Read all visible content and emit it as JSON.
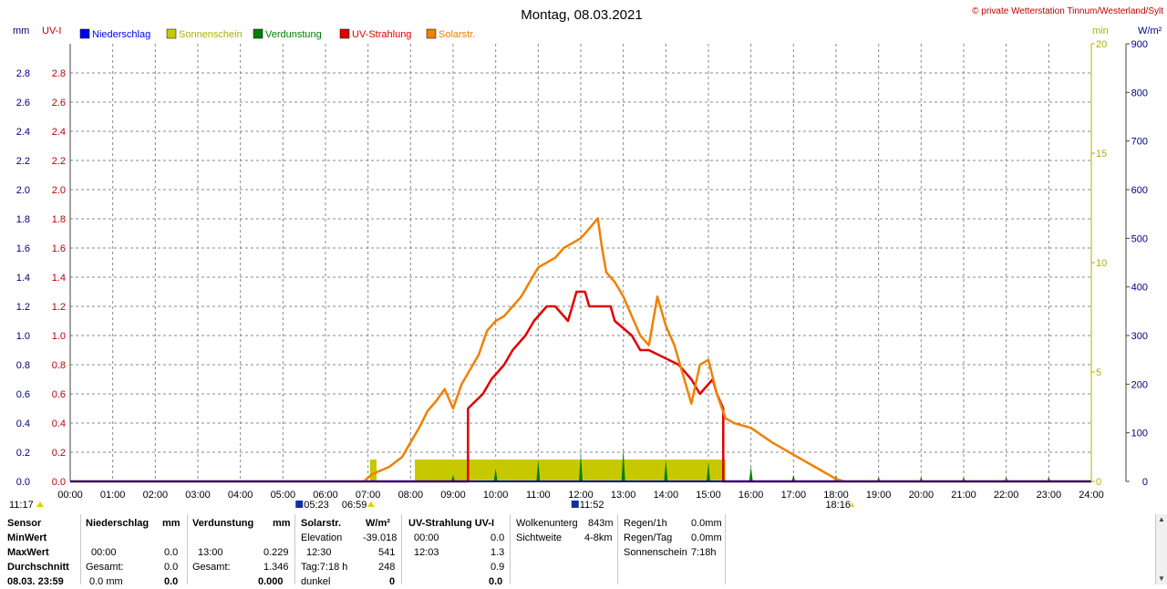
{
  "header": {
    "title": "Montag, 08.03.2021",
    "copyright": "© private Wetterstation Tinnum/Westerland/Sylt"
  },
  "axes": {
    "left1_unit": "mm",
    "left2_unit": "UV-I",
    "right1_unit": "min",
    "right2_unit": "W/m²"
  },
  "legend": [
    {
      "label": "Niederschlag",
      "color": "#0000ee"
    },
    {
      "label": "Sonnenschein",
      "color": "#c8c800"
    },
    {
      "label": "Verdunstung",
      "color": "#008000"
    },
    {
      "label": "UV-Strahlung",
      "color": "#e00000"
    },
    {
      "label": "Solarstr.",
      "color": "#f08000"
    }
  ],
  "markers": {
    "left_time": "11:17",
    "sunrise": "05:23",
    "sunrise2": "06:59",
    "noon": "11:52",
    "sunset": "18:16"
  },
  "chart_data": {
    "type": "line",
    "title": "Montag, 08.03.2021",
    "x_ticks": [
      "00:00",
      "01:00",
      "02:00",
      "03:00",
      "04:00",
      "05:00",
      "06:00",
      "07:00",
      "08:00",
      "09:00",
      "10:00",
      "11:00",
      "12:00",
      "13:00",
      "14:00",
      "15:00",
      "16:00",
      "17:00",
      "18:00",
      "19:00",
      "20:00",
      "21:00",
      "22:00",
      "23:00",
      "24:00"
    ],
    "xlim": [
      0,
      24
    ],
    "y_left_mm_ticks": [
      "0.0",
      "0.2",
      "0.4",
      "0.6",
      "0.8",
      "1.0",
      "1.2",
      "1.4",
      "1.6",
      "1.8",
      "2.0",
      "2.2",
      "2.4",
      "2.6",
      "2.8"
    ],
    "y_left_uv_ticks": [
      "0.0",
      "0.2",
      "0.4",
      "0.6",
      "0.8",
      "1.0",
      "1.2",
      "1.4",
      "1.6",
      "1.8",
      "2.0",
      "2.2",
      "2.4",
      "2.6",
      "2.8"
    ],
    "y_right_min_ticks": [
      "0",
      "5",
      "10",
      "15",
      "20"
    ],
    "y_right_wm2_ticks": [
      "0",
      "100",
      "200",
      "300",
      "400",
      "500",
      "600",
      "700",
      "800",
      "900"
    ],
    "ylim_uv": [
      0,
      3
    ],
    "ylim_min": [
      0,
      20
    ],
    "ylim_wm2": [
      0,
      900
    ],
    "grid": true,
    "series": [
      {
        "name": "UV-Strahlung",
        "axis": "uv",
        "color": "#e00000",
        "step": true,
        "x": [
          0,
          9.35,
          9.35,
          9.7,
          9.9,
          10.2,
          10.4,
          10.7,
          10.9,
          11.2,
          11.4,
          11.7,
          11.8,
          11.9,
          12.1,
          12.2,
          12.7,
          12.8,
          13.2,
          13.4,
          13.6,
          14.3,
          14.6,
          14.8,
          15.1,
          15.2,
          15.35,
          15.35,
          24
        ],
        "y": [
          0,
          0,
          0.5,
          0.6,
          0.7,
          0.8,
          0.9,
          1.0,
          1.1,
          1.2,
          1.2,
          1.1,
          1.2,
          1.3,
          1.3,
          1.2,
          1.2,
          1.1,
          1.0,
          0.9,
          0.9,
          0.8,
          0.7,
          0.6,
          0.7,
          0.6,
          0.5,
          0,
          0
        ]
      },
      {
        "name": "Solarstr.",
        "axis": "wm2",
        "color": "#f08000",
        "step": false,
        "x": [
          0,
          6.9,
          7.1,
          7.5,
          7.8,
          8.0,
          8.2,
          8.4,
          8.6,
          8.8,
          9.0,
          9.2,
          9.4,
          9.6,
          9.8,
          10.0,
          10.2,
          10.4,
          10.6,
          10.8,
          11.0,
          11.2,
          11.4,
          11.6,
          11.8,
          12.0,
          12.2,
          12.4,
          12.5,
          12.6,
          12.8,
          13.0,
          13.2,
          13.4,
          13.6,
          13.8,
          14.0,
          14.2,
          14.4,
          14.6,
          14.8,
          15.0,
          15.2,
          15.4,
          15.6,
          16.0,
          16.5,
          17.0,
          17.5,
          18.0,
          18.2,
          24
        ],
        "y": [
          0,
          0,
          15,
          30,
          50,
          80,
          110,
          145,
          165,
          190,
          150,
          200,
          230,
          260,
          310,
          330,
          340,
          360,
          380,
          410,
          440,
          450,
          460,
          480,
          490,
          500,
          520,
          541,
          480,
          430,
          410,
          380,
          340,
          300,
          280,
          380,
          320,
          280,
          220,
          160,
          240,
          250,
          180,
          130,
          120,
          110,
          80,
          55,
          30,
          5,
          0,
          0
        ]
      },
      {
        "name": "Sonnenschein",
        "axis": "min",
        "color": "#c8c800",
        "type": "bar",
        "blocks": [
          {
            "from": 7.05,
            "to": 7.2,
            "value": 1.0
          },
          {
            "from": 8.1,
            "to": 15.4,
            "value": 1.0
          }
        ]
      },
      {
        "name": "Verdunstung",
        "axis": "min",
        "color": "#008000",
        "type": "spike",
        "x": [
          9.0,
          10.0,
          11.0,
          12.0,
          13.0,
          14.0,
          15.0,
          16.0,
          17.0,
          18.0,
          19.0,
          20.0,
          21.0,
          22.0,
          23.0
        ],
        "y": [
          0.3,
          0.6,
          1.0,
          1.3,
          1.5,
          1.0,
          0.9,
          0.7,
          0.3,
          0.3,
          0.2,
          0.2,
          0.2,
          0.2,
          0.2
        ]
      },
      {
        "name": "Niederschlag",
        "axis": "mm",
        "color": "#0000ee",
        "type": "bar",
        "x": [],
        "y": []
      }
    ]
  },
  "table": {
    "row_labels": [
      "Sensor",
      "MinWert",
      "MaxWert",
      "Durchschnitt",
      "08.03. 23:59"
    ],
    "niederschlag": {
      "head": "Niederschlag",
      "unit": "mm",
      "max_time": "00:00",
      "max_val": "0.0",
      "sum_label": "Gesamt:",
      "sum_val": "0.0",
      "last_val": "0.0 mm",
      "last_total": "0.0"
    },
    "verdunstung": {
      "head": "Verdunstung",
      "unit": "mm",
      "max_time": "13:00",
      "max_val": "0.229",
      "sum_label": "Gesamt:",
      "sum_val": "1.346",
      "last_total": "0.000"
    },
    "solar": {
      "head": "Solarstr.",
      "unit": "W/m²",
      "r1_label": "Elevation",
      "r1_val": "-39.018",
      "r2_label": "12:30",
      "r2_val": "541",
      "r3_label": "Tag:7:18 h",
      "r3_val": "248",
      "r4_label": "dunkel",
      "r4_val": "0"
    },
    "uv": {
      "head": "UV-Strahlung UV-I",
      "r1_label": "00:00",
      "r1_val": "0.0",
      "r2_label": "12:03",
      "r2_val": "1.3",
      "r3_val": "0.9",
      "r4_val": "0.0"
    },
    "cloud": {
      "l1": "Wolkenunterg",
      "v1": "843m",
      "l2": "Sichtweite",
      "v2": "4-8km"
    },
    "rain": {
      "l1": "Regen/1h",
      "v1": "0.0mm",
      "l2": "Regen/Tag",
      "v2": "0.0mm",
      "l3": "Sonnenschein",
      "v3": "7:18h"
    }
  }
}
